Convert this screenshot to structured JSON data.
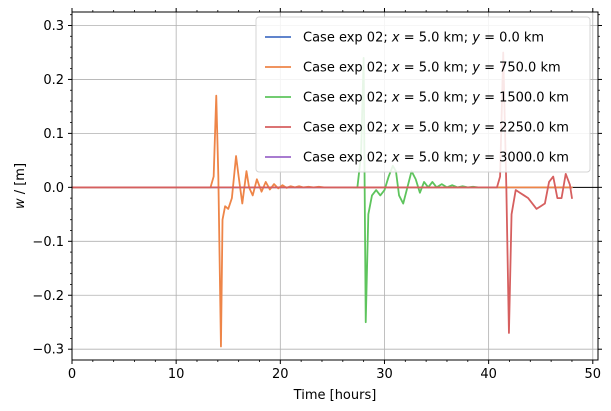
{
  "chart_data": {
    "type": "line",
    "title": "",
    "xlabel": "Time [hours]",
    "ylabel": "w / [m]",
    "xlim": [
      0,
      50.5
    ],
    "ylim": [
      -0.32,
      0.325
    ],
    "xticks": [
      0,
      10,
      20,
      30,
      40,
      50
    ],
    "yticks": [
      -0.3,
      -0.2,
      -0.1,
      0.0,
      0.1,
      0.2,
      0.3
    ],
    "xtick_labels": [
      "0",
      "10",
      "20",
      "30",
      "40",
      "50"
    ],
    "ytick_labels": [
      "−0.3",
      "−0.2",
      "−0.1",
      "0.0",
      "0.1",
      "0.2",
      "0.3"
    ],
    "grid": true,
    "legend_position": "top-right",
    "series": [
      {
        "name": "Case exp 02; x = 5.0 km; y = 0.0 km",
        "label_parts": [
          "Case exp 02; ",
          "x",
          " = 5.0 km; ",
          "y",
          " = 0.0 km"
        ],
        "color": "#4a72c4",
        "x": [
          0,
          48
        ],
        "y": [
          0.0,
          0.0
        ]
      },
      {
        "name": "Case exp 02; x = 5.0 km; y = 750.0 km",
        "label_parts": [
          "Case exp 02; ",
          "x",
          " = 5.0 km; ",
          "y",
          " = 750.0 km"
        ],
        "color": "#ee8548",
        "x": [
          0,
          13.3,
          13.6,
          13.85,
          14.05,
          14.3,
          14.45,
          14.7,
          15.0,
          15.35,
          15.75,
          16.0,
          16.35,
          16.75,
          17.0,
          17.35,
          17.75,
          18.2,
          18.6,
          19.0,
          19.4,
          19.8,
          20.2,
          20.6,
          21.0,
          21.4,
          21.8,
          22.2,
          22.7,
          23.2,
          23.7,
          24.2,
          25.0,
          26.0,
          28.0,
          48
        ],
        "y": [
          0.0,
          0.0,
          0.02,
          0.17,
          0.02,
          -0.295,
          -0.06,
          -0.035,
          -0.04,
          -0.02,
          0.058,
          0.02,
          -0.03,
          0.03,
          0.0,
          -0.015,
          0.015,
          -0.008,
          0.01,
          -0.004,
          0.006,
          -0.002,
          0.004,
          -0.001,
          0.002,
          0.0,
          0.002,
          0.0,
          0.001,
          0.0,
          0.001,
          0.0,
          0.0,
          0.0,
          0.0,
          0.0
        ]
      },
      {
        "name": "Case exp 02; x = 5.0 km; y = 1500.0 km",
        "label_parts": [
          "Case exp 02; ",
          "x",
          " = 5.0 km; ",
          "y",
          " = 1500.0 km"
        ],
        "color": "#5ec45d",
        "x": [
          27.0,
          27.4,
          27.75,
          28.0,
          28.2,
          28.45,
          28.8,
          29.2,
          29.6,
          30.0,
          30.4,
          30.8,
          31.1,
          31.4,
          31.8,
          32.2,
          32.6,
          33.0,
          33.4,
          33.8,
          34.2,
          34.6,
          35.0,
          35.5,
          36.0,
          36.5,
          37.0,
          37.5,
          38.0,
          38.5,
          39.0,
          39.5,
          40.0
        ],
        "y": [
          0.0,
          0.0,
          0.06,
          0.24,
          -0.25,
          -0.05,
          -0.015,
          -0.005,
          -0.015,
          -0.005,
          0.02,
          0.04,
          0.03,
          -0.015,
          -0.03,
          0.0,
          0.03,
          0.015,
          -0.01,
          0.01,
          0.0,
          0.01,
          0.0,
          0.006,
          0.0,
          0.004,
          0.0,
          0.002,
          0.0,
          0.001,
          0.0,
          0.0,
          0.0
        ]
      },
      {
        "name": "Case exp 02; x = 5.0 km; y = 2250.0 km",
        "label_parts": [
          "Case exp 02; ",
          "x",
          " = 5.0 km; ",
          "y",
          " = 2250.0 km"
        ],
        "color": "#d65f5f",
        "x": [
          0,
          40.8,
          41.1,
          41.4,
          41.7,
          41.95,
          42.2,
          42.6,
          43.0,
          43.4,
          43.8,
          44.2,
          44.6,
          45.0,
          45.4,
          45.8,
          46.2,
          46.6,
          47.0,
          47.4,
          47.8,
          48.0
        ],
        "y": [
          0.0,
          0.0,
          0.02,
          0.25,
          0.0,
          -0.27,
          -0.05,
          -0.005,
          -0.01,
          -0.015,
          -0.02,
          -0.03,
          -0.04,
          -0.035,
          -0.03,
          0.01,
          0.02,
          -0.02,
          -0.02,
          0.025,
          0.005,
          -0.02
        ]
      },
      {
        "name": "Case exp 02; x = 5.0 km; y = 3000.0 km",
        "label_parts": [
          "Case exp 02; ",
          "x",
          " = 5.0 km; ",
          "y",
          " = 3000.0 km"
        ],
        "color": "#9b68c9",
        "x": [],
        "y": []
      }
    ]
  }
}
